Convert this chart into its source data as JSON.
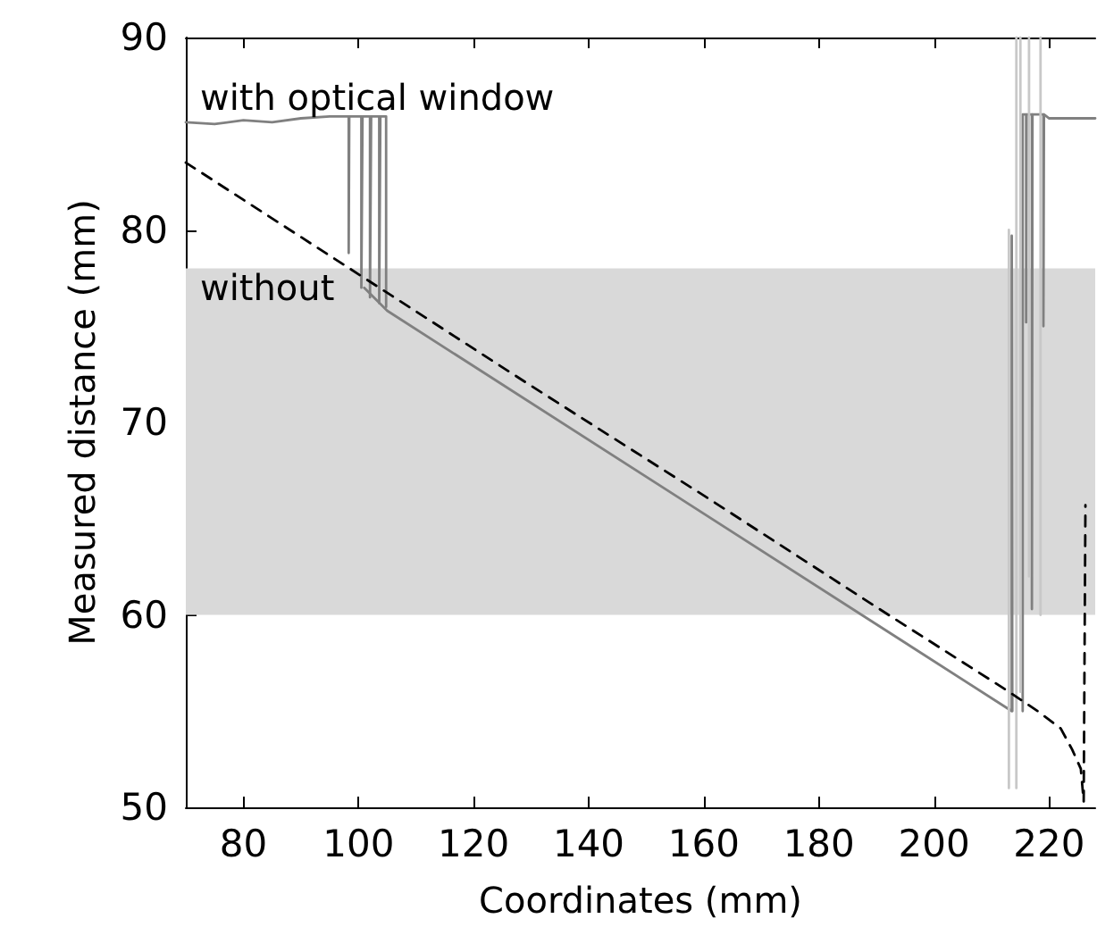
{
  "chart_data": {
    "type": "line",
    "xlabel": "Coordinates (mm)",
    "ylabel": "Measured distance (mm)",
    "xlim": [
      70,
      228
    ],
    "xticks": [
      80,
      100,
      120,
      140,
      160,
      180,
      200,
      220
    ],
    "ylim": [
      50,
      90
    ],
    "yticks": [
      50,
      60,
      70,
      80,
      90
    ],
    "grid": false,
    "legend": false,
    "bands": [
      {
        "axis": "y",
        "from": 60,
        "to": 78,
        "color": "#d9d9d9"
      }
    ],
    "series": [
      {
        "name": "with optical window",
        "color": "#808080",
        "line_style": "solid",
        "x": [
          70,
          75,
          80,
          85,
          90,
          95,
          98.3,
          98.3,
          98.4,
          100.5,
          100.5,
          100.7,
          102,
          102,
          102.2,
          103.6,
          103.6,
          103.8,
          104.8,
          104.8,
          110,
          215.4,
          215.4,
          216,
          216,
          216.1,
          217,
          217,
          217.1,
          219,
          219,
          219.1,
          220,
          224,
          228
        ],
        "values": [
          85.6,
          85.5,
          85.7,
          85.6,
          85.8,
          85.9,
          85.9,
          78.8,
          85.9,
          85.9,
          77,
          85.9,
          85.9,
          76.5,
          85.9,
          85.9,
          76.2,
          85.9,
          85.9,
          76,
          null,
          55,
          86,
          86,
          75.2,
          86,
          86,
          60.3,
          86,
          86,
          75,
          86,
          85.8,
          85.8,
          85.8
        ]
      },
      {
        "name": "without",
        "color": "#808080",
        "line_style": "solid",
        "x": [
          101,
          105,
          213.5,
          213.5,
          213.6
        ],
        "values": [
          77,
          75.8,
          55,
          79.7,
          55
        ]
      },
      {
        "color": "#c8c8c8",
        "line_style": "solid",
        "x": [
          213,
          213,
          213.5,
          214.3,
          214.3,
          214.8,
          215,
          215,
          215.5,
          216.5,
          216.5,
          217.5,
          218.5,
          218.5
        ],
        "values": [
          80,
          51,
          null,
          90,
          51,
          null,
          90,
          56,
          null,
          90,
          62,
          null,
          90,
          60
        ]
      },
      {
        "color": "#000000",
        "line_style": "dashed",
        "x": [
          70,
          100,
          130,
          160,
          190,
          212,
          218,
          222,
          224,
          225.5,
          226,
          226.3
        ],
        "values": [
          83.5,
          77.7,
          71.9,
          66.2,
          60.4,
          56.2,
          55.0,
          54.1,
          53,
          52,
          50.3,
          65.7
        ]
      }
    ]
  }
}
